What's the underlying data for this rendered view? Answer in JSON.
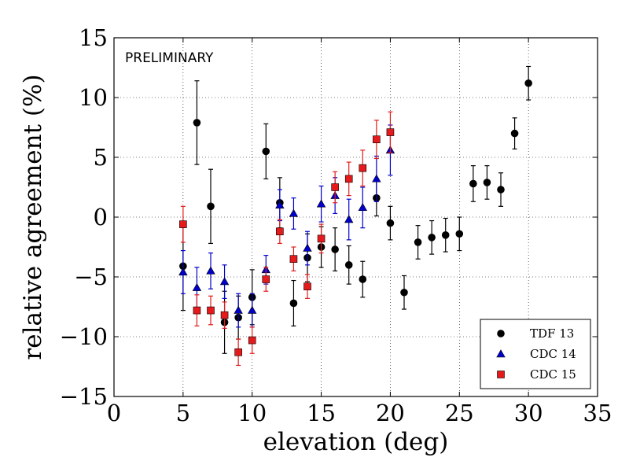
{
  "chart_data": {
    "type": "scatter",
    "title": "",
    "annotation": "PRELIMINARY",
    "xlabel": "elevation (deg)",
    "ylabel": "relative agreement (%)",
    "xlim": [
      0,
      35
    ],
    "ylim": [
      -15,
      15
    ],
    "xticks": [
      0,
      5,
      10,
      15,
      20,
      25,
      30,
      35
    ],
    "yticks": [
      -15,
      -10,
      -5,
      0,
      5,
      10,
      15
    ],
    "xtick_labels": [
      "0",
      "5",
      "10",
      "15",
      "20",
      "25",
      "30",
      "35"
    ],
    "ytick_labels": [
      "−15",
      "−10",
      "−5",
      "0",
      "5",
      "10",
      "15"
    ],
    "grid": true,
    "legend_position": "lower-right",
    "series": [
      {
        "name": "TDF 13",
        "marker": "circle",
        "color": "#000000",
        "points": [
          {
            "x": 5,
            "y": -4.1,
            "err": 3.7
          },
          {
            "x": 6,
            "y": 7.9,
            "err": 3.5
          },
          {
            "x": 7,
            "y": 0.9,
            "err": 3.1
          },
          {
            "x": 8,
            "y": -8.8,
            "err": 2.6
          },
          {
            "x": 9,
            "y": -8.4,
            "err": 1.8
          },
          {
            "x": 10,
            "y": -6.7,
            "err": 2.3
          },
          {
            "x": 11,
            "y": 5.5,
            "err": 2.3
          },
          {
            "x": 12,
            "y": 1.2,
            "err": 2.1
          },
          {
            "x": 13,
            "y": -7.2,
            "err": 1.9
          },
          {
            "x": 14,
            "y": -3.4,
            "err": 2.0
          },
          {
            "x": 15,
            "y": -2.5,
            "err": 1.7
          },
          {
            "x": 16,
            "y": -2.7,
            "err": 1.8
          },
          {
            "x": 17,
            "y": -4.0,
            "err": 1.6
          },
          {
            "x": 18,
            "y": -5.2,
            "err": 1.5
          },
          {
            "x": 19,
            "y": 1.6,
            "err": 1.5
          },
          {
            "x": 20,
            "y": -0.5,
            "err": 1.4
          },
          {
            "x": 21,
            "y": -6.3,
            "err": 1.4
          },
          {
            "x": 22,
            "y": -2.1,
            "err": 1.4
          },
          {
            "x": 23,
            "y": -1.7,
            "err": 1.4
          },
          {
            "x": 24,
            "y": -1.5,
            "err": 1.4
          },
          {
            "x": 25,
            "y": -1.4,
            "err": 1.4
          },
          {
            "x": 26,
            "y": 2.8,
            "err": 1.5
          },
          {
            "x": 27,
            "y": 2.9,
            "err": 1.4
          },
          {
            "x": 28,
            "y": 2.3,
            "err": 1.4
          },
          {
            "x": 29,
            "y": 7.0,
            "err": 1.3
          },
          {
            "x": 30,
            "y": 11.2,
            "err": 1.4
          }
        ]
      },
      {
        "name": "CDC 14",
        "marker": "triangle",
        "color": "#0000cc",
        "points": [
          {
            "x": 5,
            "y": -4.6,
            "err": 1.8
          },
          {
            "x": 6,
            "y": -5.9,
            "err": 1.7
          },
          {
            "x": 7,
            "y": -4.5,
            "err": 1.5
          },
          {
            "x": 8,
            "y": -5.4,
            "err": 1.4
          },
          {
            "x": 9,
            "y": -7.8,
            "err": 1.4
          },
          {
            "x": 10,
            "y": -7.8,
            "err": 1.4
          },
          {
            "x": 11,
            "y": -4.4,
            "err": 1.2
          },
          {
            "x": 12,
            "y": 1.0,
            "err": 1.3
          },
          {
            "x": 13,
            "y": 0.3,
            "err": 1.3
          },
          {
            "x": 14,
            "y": -2.6,
            "err": 1.4
          },
          {
            "x": 15,
            "y": 1.1,
            "err": 1.5
          },
          {
            "x": 16,
            "y": 1.8,
            "err": 1.5
          },
          {
            "x": 17,
            "y": -0.2,
            "err": 1.7
          },
          {
            "x": 18,
            "y": 0.8,
            "err": 1.7
          },
          {
            "x": 19,
            "y": 3.2,
            "err": 1.9
          },
          {
            "x": 20,
            "y": 5.6,
            "err": 2.1
          }
        ]
      },
      {
        "name": "CDC 15",
        "marker": "square",
        "color": "#e41a1c",
        "points": [
          {
            "x": 5,
            "y": -0.6,
            "err": 1.5
          },
          {
            "x": 6,
            "y": -7.8,
            "err": 1.3
          },
          {
            "x": 7,
            "y": -7.8,
            "err": 1.2
          },
          {
            "x": 8,
            "y": -8.2,
            "err": 1.1
          },
          {
            "x": 9,
            "y": -11.3,
            "err": 1.1
          },
          {
            "x": 10,
            "y": -10.3,
            "err": 1.1
          },
          {
            "x": 11,
            "y": -5.2,
            "err": 1.0
          },
          {
            "x": 12,
            "y": -1.2,
            "err": 1.0
          },
          {
            "x": 13,
            "y": -3.5,
            "err": 1.0
          },
          {
            "x": 14,
            "y": -5.8,
            "err": 1.0
          },
          {
            "x": 15,
            "y": -1.8,
            "err": 1.2
          },
          {
            "x": 16,
            "y": 2.5,
            "err": 1.3
          },
          {
            "x": 17,
            "y": 3.2,
            "err": 1.4
          },
          {
            "x": 18,
            "y": 4.1,
            "err": 1.5
          },
          {
            "x": 19,
            "y": 6.5,
            "err": 1.6
          },
          {
            "x": 20,
            "y": 7.1,
            "err": 1.7
          }
        ]
      }
    ]
  }
}
